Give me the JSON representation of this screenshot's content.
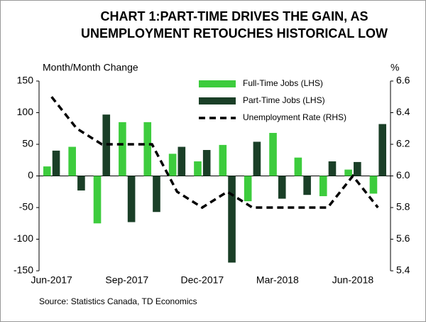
{
  "chart_data": {
    "type": "bar-line",
    "title": [
      "CHART 1:PART-TIME DRIVES THE GAIN, AS",
      "UNEMPLOYMENT RETOUCHES HISTORICAL LOW"
    ],
    "y_label": "Month/Month Change",
    "y2_label": "%",
    "source": "Source: Statistics Canada, TD Economics",
    "categories": [
      "Jun-2017",
      null,
      null,
      "Sep-2017",
      null,
      null,
      "Dec-2017",
      null,
      null,
      "Mar-2018",
      null,
      null,
      "Jun-2018",
      null
    ],
    "series": [
      {
        "name": "Full-Time Jobs (LHS)",
        "type": "bar",
        "color": "#3dcc3d",
        "values": [
          15,
          46,
          -75,
          85,
          85,
          35,
          23,
          49,
          -40,
          68,
          29,
          -32,
          10,
          -28
        ]
      },
      {
        "name": "Part-Time Jobs (LHS)",
        "type": "bar",
        "color": "#1a3f27",
        "values": [
          40,
          -23,
          97,
          -73,
          -57,
          46,
          41,
          -137,
          54,
          -36,
          -30,
          23,
          22,
          82
        ]
      },
      {
        "name": "Unemployment Rate (RHS)",
        "type": "line",
        "axis": "y2",
        "color": "#000000",
        "dashed": true,
        "values": [
          6.5,
          6.3,
          6.2,
          6.2,
          6.2,
          5.9,
          5.8,
          5.9,
          5.8,
          5.8,
          5.8,
          5.8,
          6.0,
          5.8
        ]
      }
    ],
    "ylim": [
      -150,
      150
    ],
    "yticks": [
      -150,
      -100,
      -50,
      0,
      50,
      100,
      150
    ],
    "y2lim": [
      5.4,
      6.6
    ],
    "y2ticks": [
      5.4,
      5.6,
      5.8,
      {
        "value": 6,
        "label": "6.0"
      },
      6.2,
      6.4,
      6.6
    ],
    "grid": false,
    "legend": "top-right"
  }
}
